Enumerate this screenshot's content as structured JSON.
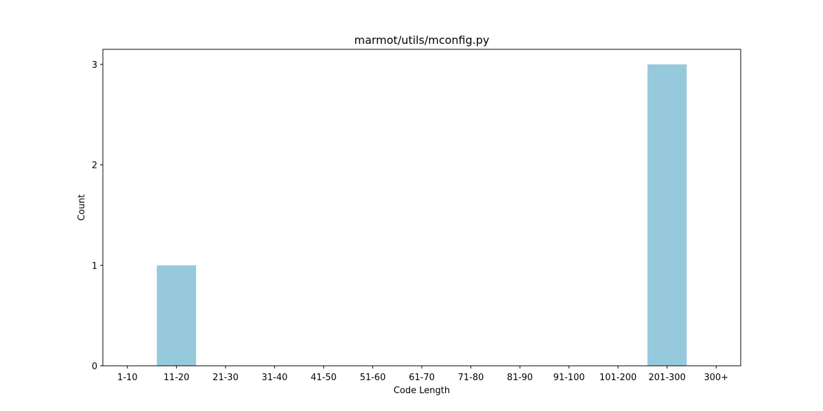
{
  "chart_data": {
    "type": "bar",
    "title": "marmot/utils/mconfig.py",
    "xlabel": "Code Length",
    "ylabel": "Count",
    "categories": [
      "1-10",
      "11-20",
      "21-30",
      "31-40",
      "41-50",
      "51-60",
      "61-70",
      "71-80",
      "81-90",
      "91-100",
      "101-200",
      "201-300",
      "300+"
    ],
    "values": [
      0,
      1,
      0,
      0,
      0,
      0,
      0,
      0,
      0,
      0,
      0,
      3,
      0
    ],
    "ylim": [
      0,
      3.15
    ],
    "yticks": [
      0,
      1,
      2,
      3
    ],
    "grid": false,
    "legend": "none",
    "bar_color": "#96c9dc"
  }
}
